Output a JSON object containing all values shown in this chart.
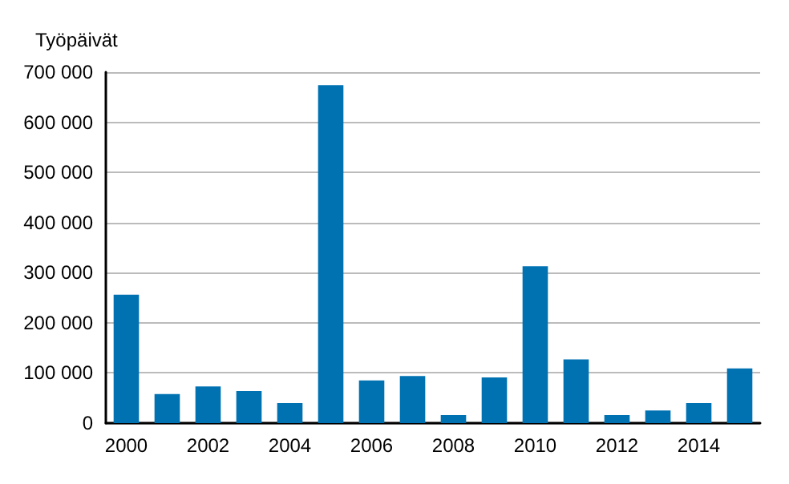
{
  "chart_data": {
    "type": "bar",
    "ylabel": "Työpäivät",
    "categories": [
      "2000",
      null,
      "2002",
      null,
      "2004",
      null,
      "2006",
      null,
      "2008",
      null,
      "2010",
      null,
      "2012",
      null,
      "2014",
      null
    ],
    "values": [
      256000,
      58000,
      73000,
      64000,
      40000,
      674000,
      85000,
      94000,
      16000,
      91000,
      313000,
      127000,
      16000,
      25000,
      40000,
      109000
    ],
    "color": "#0072b2",
    "ylim": [
      0,
      700000
    ],
    "yticks": [
      0,
      {
        "value": 100000,
        "label": "100 000"
      },
      {
        "value": 200000,
        "label": "200 000"
      },
      {
        "value": 300000,
        "label": "300 000"
      },
      {
        "value": 400000,
        "label": "400 000"
      },
      {
        "value": 500000,
        "label": "500 000"
      },
      {
        "value": 600000,
        "label": "600 000"
      },
      {
        "value": 700000,
        "label": "700 000"
      }
    ],
    "grid": "y"
  }
}
